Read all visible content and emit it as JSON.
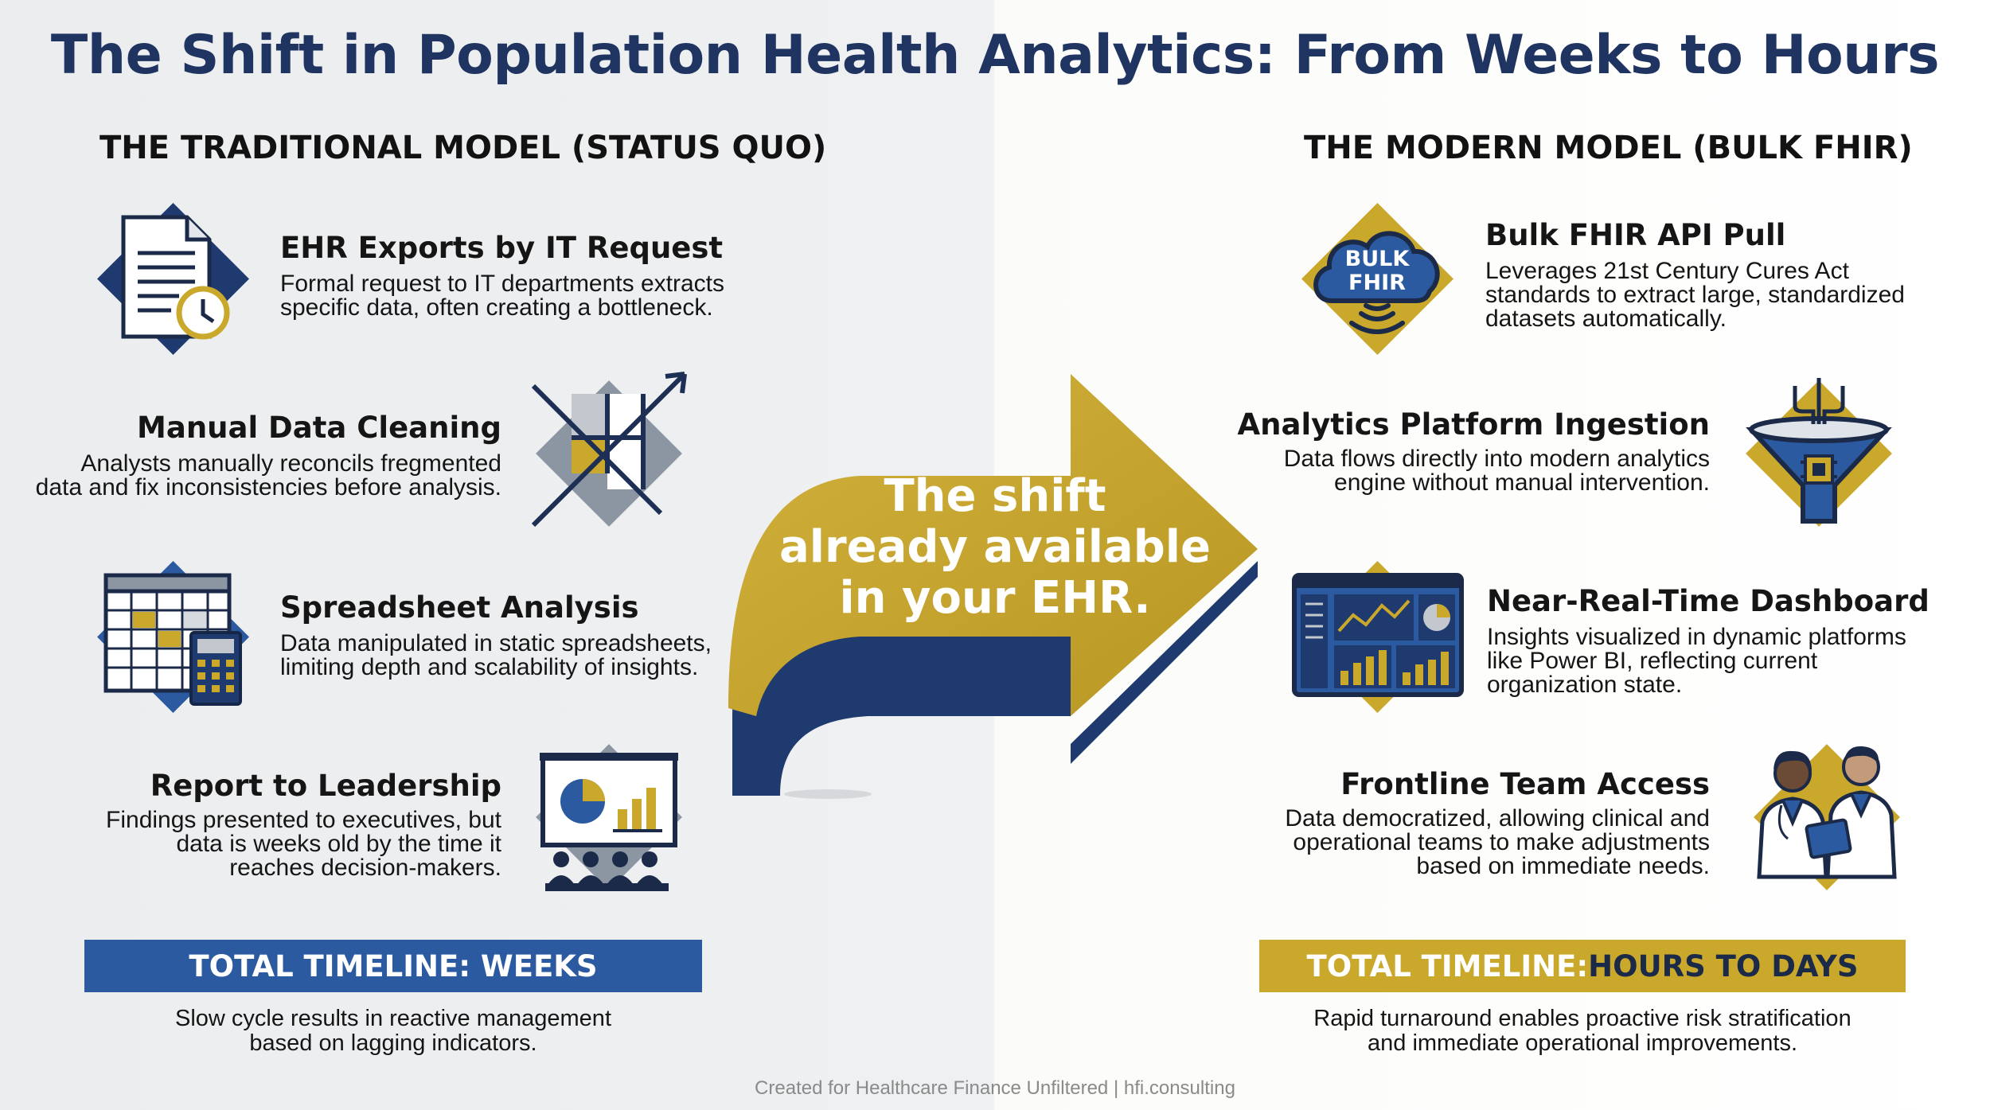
{
  "title": "The Shift in Population Health Analytics: From Weeks to Hours",
  "colors": {
    "navy": "#1f3a6e",
    "gold": "#c9a82c",
    "gray": "#8a93a0",
    "title": "#1f3460"
  },
  "traditional": {
    "heading": "THE TRADITIONAL MODEL (STATUS QUO)",
    "items": [
      {
        "title": "EHR Exports by IT Request",
        "desc": "Formal request to IT departments extracts\nspecific data, often creating a bottleneck.",
        "icon": "document-clock-icon"
      },
      {
        "title": "Manual Data Cleaning",
        "desc": "Analysts manually reconcils fregmented\ndata and fix inconsistencies before analysis.",
        "icon": "data-cleaning-icon"
      },
      {
        "title": "Spreadsheet Analysis",
        "desc": "Data manipulated in static spreadsheets,\nlimiting depth and scalability of insights.",
        "icon": "spreadsheet-calculator-icon"
      },
      {
        "title": "Report to Leadership",
        "desc": "Findings presented to executives, but\ndata is weeks old by the time it\nreaches decision-makers.",
        "icon": "presentation-audience-icon"
      }
    ],
    "timeline": "TOTAL TIMELINE: WEEKS",
    "timeline_note": "Slow cycle results in reactive management\nbased on lagging indicators."
  },
  "arrow_text": "The shift\nalready available\nin your EHR.",
  "modern": {
    "heading": "THE MODERN MODEL (BULK FHIR)",
    "items": [
      {
        "title": "Bulk FHIR API Pull",
        "desc": "Leverages 21st Century Cures Act\nstandards to extract large, standardized\ndatasets automatically.",
        "icon": "bulk-fhir-cloud-icon",
        "icon_text": [
          "BULK",
          "FHIR"
        ]
      },
      {
        "title": "Analytics Platform Ingestion",
        "desc": "Data flows directly into modern analytics\nengine without manual intervention.",
        "icon": "funnel-chip-icon"
      },
      {
        "title": "Near-Real-Time Dashboard",
        "desc": "Insights visualized in dynamic platforms\nlike Power BI, reflecting current\norganization state.",
        "icon": "dashboard-monitor-icon"
      },
      {
        "title": "Frontline Team Access",
        "desc": "Data democratized, allowing clinical and\noperational teams to make adjustments\nbased on immediate needs.",
        "icon": "clinicians-tablet-icon"
      }
    ],
    "timeline_prefix": "TOTAL TIMELINE: ",
    "timeline_highlight": "HOURS TO DAYS",
    "timeline_note": "Rapid turnaround enables proactive risk stratification\nand immediate operational improvements."
  },
  "footer": "Created for Healthcare Finance Unfiltered | hfi.consulting"
}
